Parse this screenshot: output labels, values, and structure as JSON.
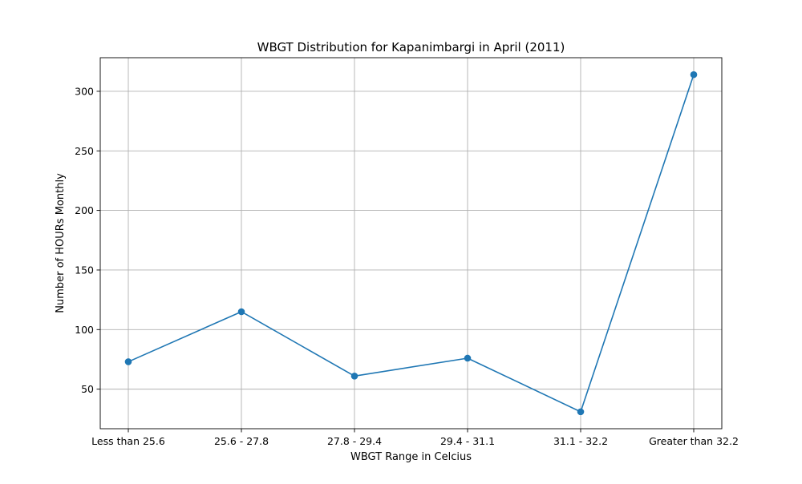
{
  "chart_data": {
    "type": "line",
    "title": "WBGT Distribution for Kapanimbargi in April (2011)",
    "xlabel": "WBGT Range in Celcius",
    "ylabel": "Number of HOURs Monthly",
    "categories": [
      "Less than 25.6",
      "25.6 - 27.8",
      "27.8 - 29.4",
      "29.4 - 31.1",
      "31.1 - 32.2",
      "Greater than 32.2"
    ],
    "series": [
      {
        "values": [
          73,
          115,
          61,
          76,
          31,
          314
        ],
        "color": "#1f77b4"
      }
    ],
    "yticks": [
      50,
      100,
      150,
      200,
      250,
      300
    ],
    "ylim": [
      16.8,
      328.2
    ],
    "grid": true,
    "legend": "none"
  }
}
